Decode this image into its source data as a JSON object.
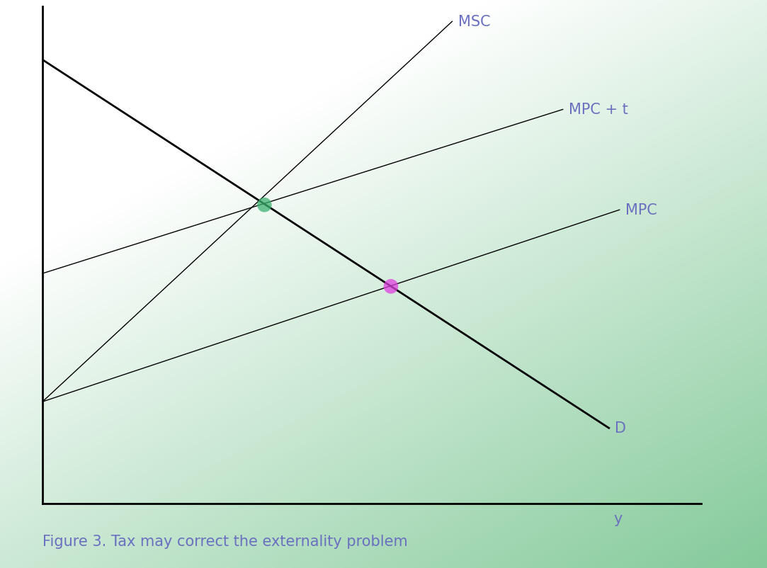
{
  "chart_data": {
    "type": "line",
    "title": "Figure 3. Tax may correct the externality problem",
    "x_label": "y",
    "xlim": [
      0,
      100
    ],
    "ylim": [
      0,
      100
    ],
    "tick_labels": false,
    "grid": false,
    "series": [
      {
        "name": "MSC",
        "color": "#000000",
        "x": [
          0,
          62.2
        ],
        "values": [
          20.5,
          97
        ]
      },
      {
        "name": "MPC + t",
        "color": "#000000",
        "x": [
          0,
          79.0
        ],
        "values": [
          46.3,
          79.3
        ]
      },
      {
        "name": "MPC",
        "color": "#000000",
        "x": [
          0,
          87.6
        ],
        "values": [
          20.5,
          59.1
        ]
      },
      {
        "name": "D",
        "color": "#000000",
        "x": [
          0,
          86.0
        ],
        "values": [
          89.3,
          15.2
        ]
      }
    ],
    "points": [
      {
        "x": 33.7,
        "y": 60.1,
        "color": "#3cb371"
      },
      {
        "x": 52.9,
        "y": 43.7,
        "color": "#e040e0"
      }
    ]
  }
}
